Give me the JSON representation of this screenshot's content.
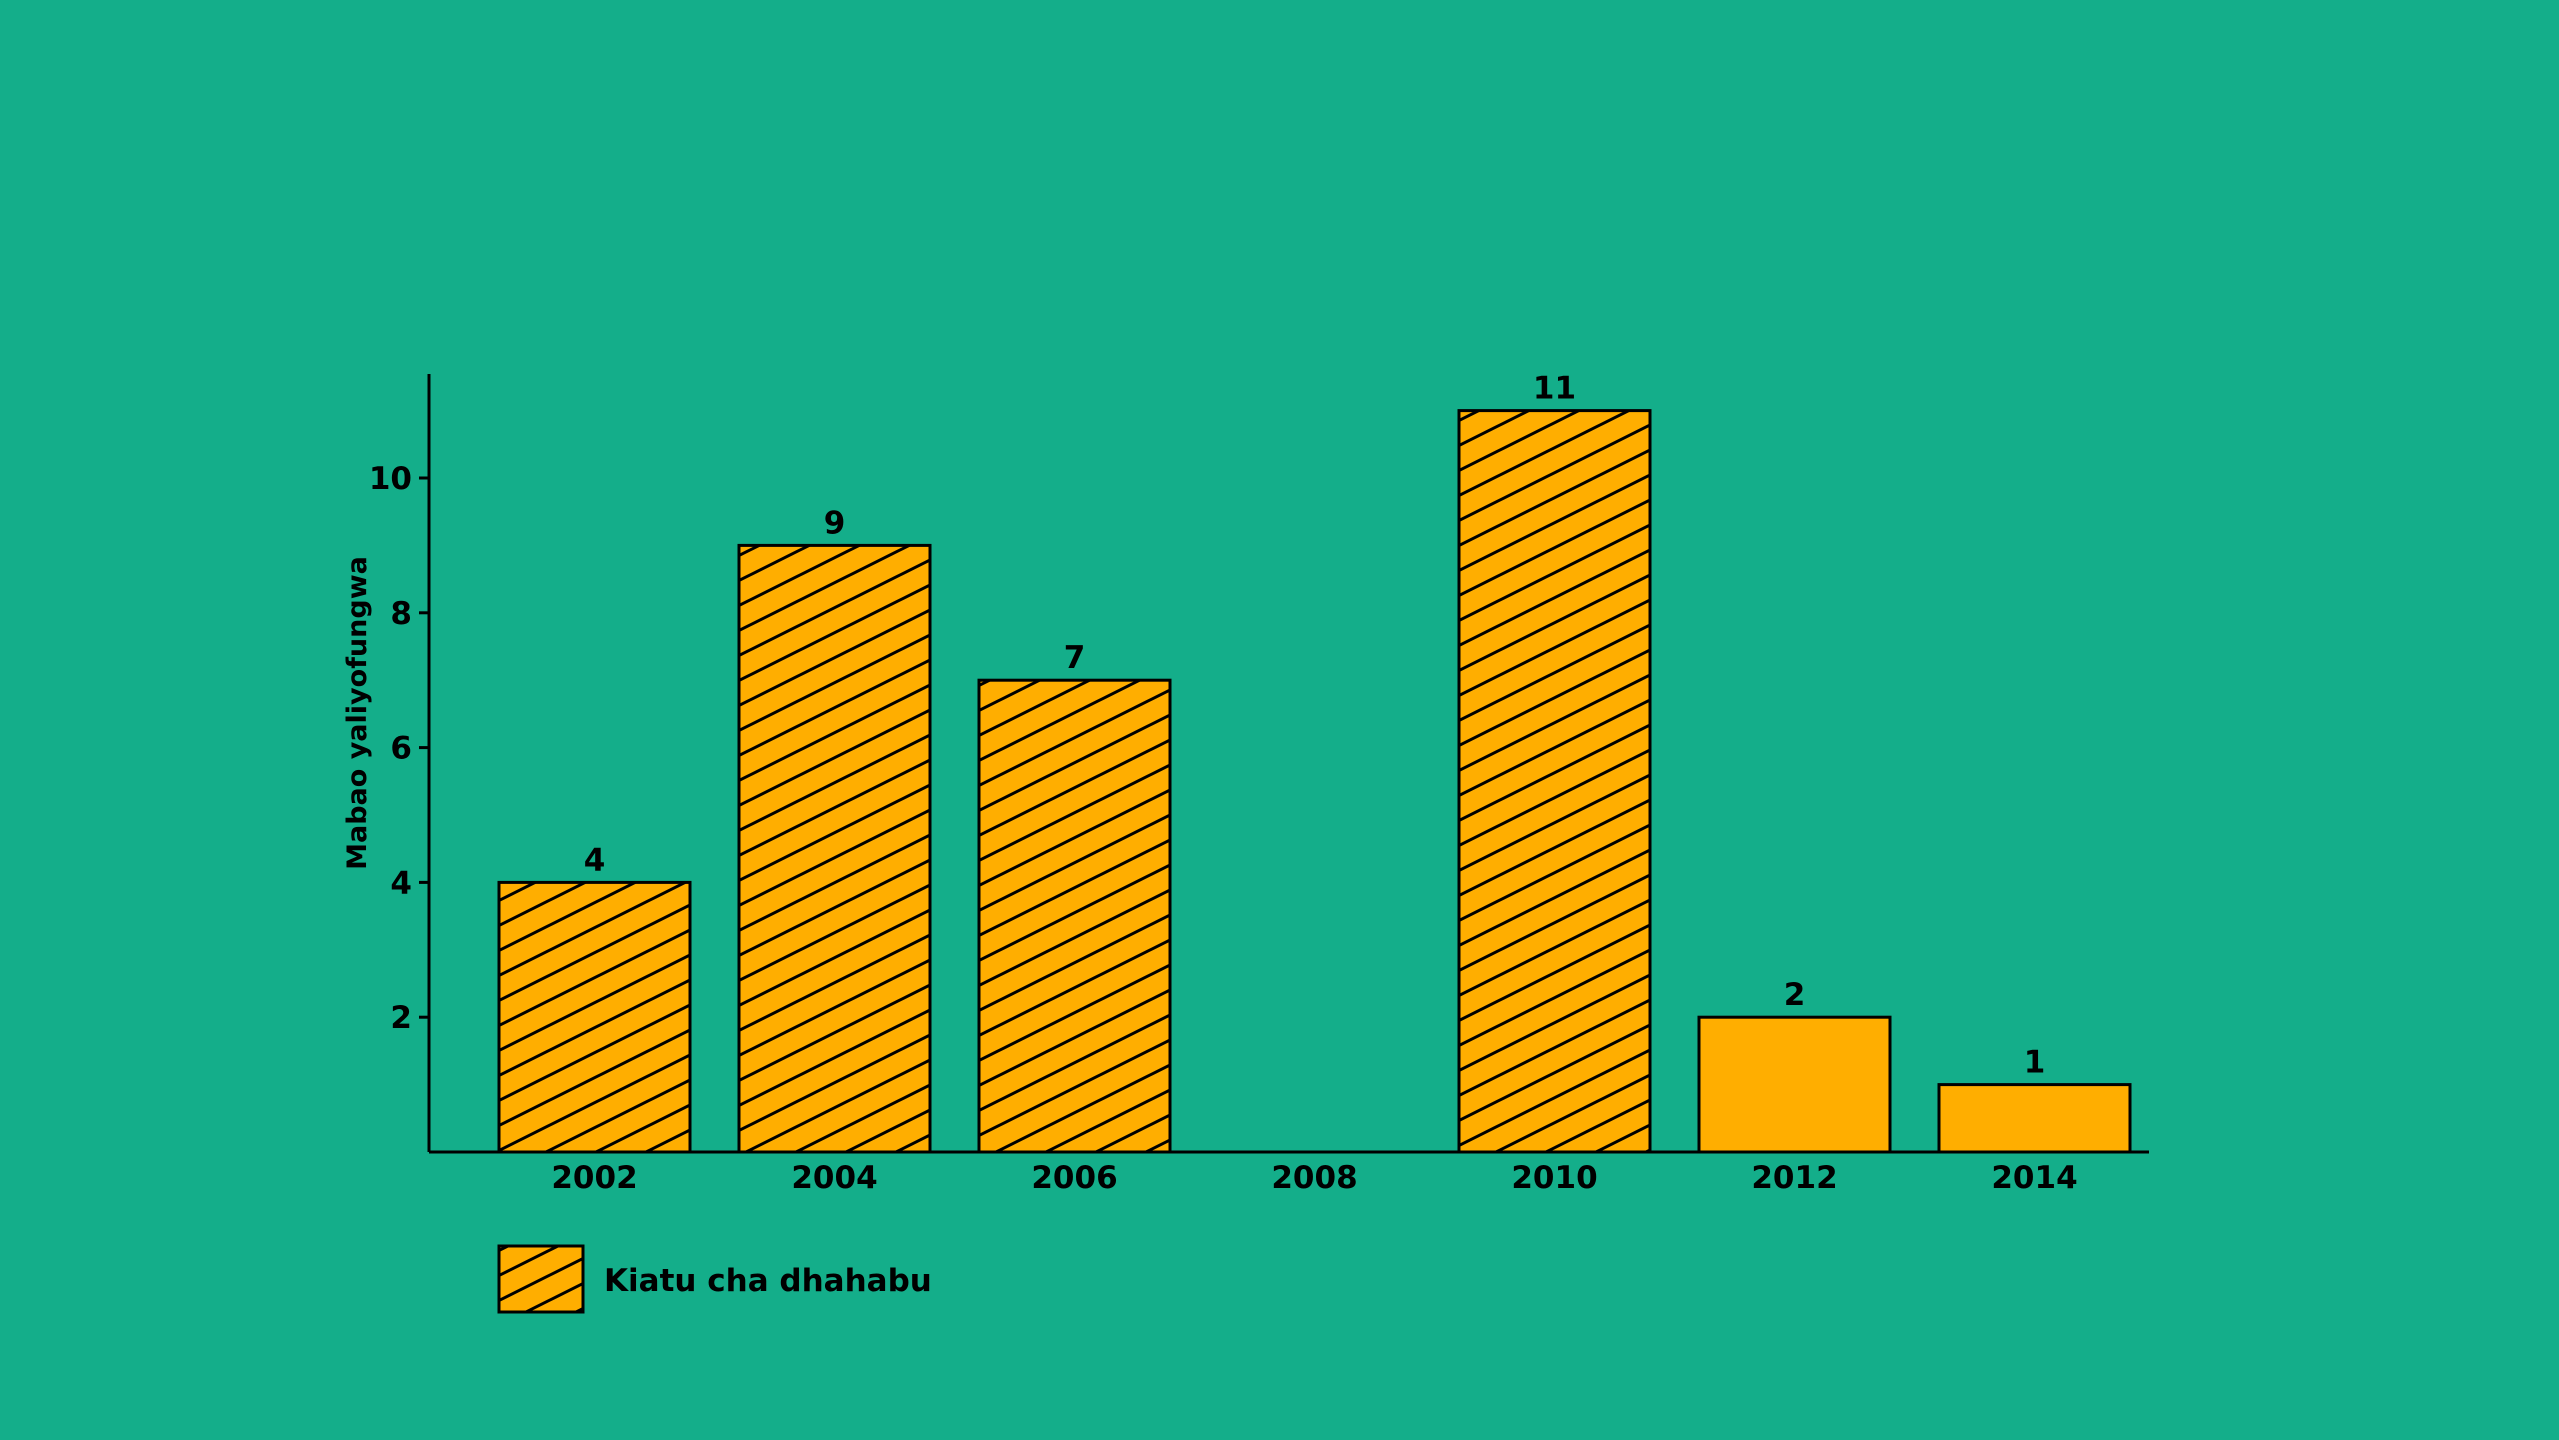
{
  "chart_data": {
    "type": "bar",
    "title": "",
    "xlabel": "",
    "ylabel": "Mabao yaliyofungwa",
    "categories": [
      "2002",
      "2004",
      "2006",
      "2008",
      "2010",
      "2012",
      "2014"
    ],
    "values": [
      4,
      9,
      7,
      0,
      11,
      2,
      1
    ],
    "hatched": [
      true,
      true,
      true,
      false,
      true,
      false,
      false
    ],
    "data_labels": [
      "4",
      "9",
      "7",
      "",
      "11",
      "2",
      "1"
    ],
    "yticks": [
      "2",
      "4",
      "6",
      "8",
      "10"
    ],
    "ylim": [
      0,
      11.5
    ],
    "grid": false,
    "legend": {
      "placement": "bottom-left",
      "entries": [
        {
          "label": "Kiatu cha dhahabu",
          "pattern": "hatched"
        }
      ]
    },
    "colors": {
      "background": "#14ae8a",
      "bar": "#ffae00",
      "stroke": "#000000"
    }
  }
}
